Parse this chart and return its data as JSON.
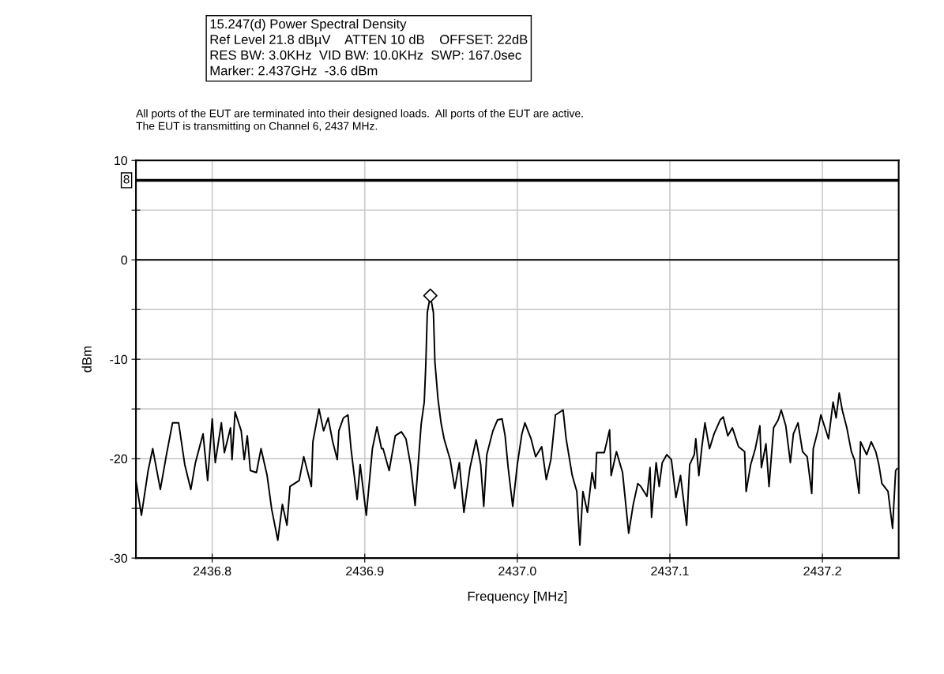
{
  "chart_data": {
    "type": "line",
    "title": "15.247(d) Power Spectral Density",
    "subtitle": "Ref Level 21.8 dBµV    ATTEN 10 dB    OFFSET: 22dB\nRES BW: 3.0KHz  VID BW: 10.0KHz  SWP: 167.0sec\nMarker: 2.437GHz  -3.6 dBm",
    "annotations": [
      "All ports of the EUT are terminated into their designed loads.  All ports of the EUT are active.\nThe EUT is transmitting on Channel 6, 2437 MHz."
    ],
    "xlabel": "Frequency [MHz]",
    "ylabel": "dBm",
    "xlim": [
      2436.75,
      2437.25
    ],
    "xticks": [
      {
        "value": 2436.8,
        "label": "2436.8"
      },
      {
        "value": 2436.9,
        "label": "2436.9"
      },
      {
        "value": 2437.0,
        "label": "2437.0"
      },
      {
        "value": 2437.1,
        "label": "2437.1"
      },
      {
        "value": 2437.2,
        "label": "2437.2"
      }
    ],
    "ylim": [
      -30,
      10
    ],
    "yticks": [
      -30,
      {
        "value": -25,
        "label": null
      },
      -20,
      {
        "value": -15,
        "label": null
      },
      -10,
      {
        "value": -5,
        "label": null
      },
      0,
      {
        "value": 5,
        "label": null
      },
      10
    ],
    "grid": true,
    "line_style": "solid",
    "marker": "none",
    "ref_lines": [
      {
        "axis": "y",
        "value": 8,
        "label": "8",
        "color": "#000000"
      },
      {
        "axis": "y",
        "value": 0,
        "label": null,
        "color": "#000000"
      }
    ],
    "series": [
      {
        "color": "#000000",
        "x": [
          2436.75,
          2436.7536,
          2436.758,
          2436.761,
          2436.766,
          2436.77,
          2436.774,
          2436.778,
          2436.782,
          2436.786,
          2436.789,
          2436.794,
          2436.797,
          2436.8,
          2436.802,
          2436.806,
          2436.808,
          2436.812,
          2436.813,
          2436.815,
          2436.819,
          2436.821,
          2436.823,
          2436.825,
          2436.829,
          2436.832,
          2436.836,
          2436.839,
          2436.843,
          2436.846,
          2436.849,
          2436.851,
          2436.857,
          2436.86,
          2436.865,
          2436.866,
          2436.87,
          2436.873,
          2436.876,
          2436.879,
          2436.882,
          2436.883,
          2436.886,
          2436.889,
          2436.891,
          2436.895,
          2436.897,
          2436.901,
          2436.905,
          2436.908,
          2436.911,
          2436.912,
          2436.916,
          2436.92,
          2436.924,
          2436.927,
          2436.93,
          2436.933,
          2436.935,
          2436.937,
          2436.939,
          2436.94,
          2436.941,
          2436.943,
          2436.945,
          2436.946,
          2436.948,
          2436.95,
          2436.952,
          2436.956,
          2436.959,
          2436.962,
          2436.965,
          2436.969,
          2436.973,
          2436.976,
          2436.978,
          2436.98,
          2436.984,
          2436.987,
          2436.99,
          2436.992,
          2436.994,
          2436.997,
          2437.0,
          2437.003,
          2437.005,
          2437.009,
          2437.012,
          2437.016,
          2437.019,
          2437.022,
          2437.025,
          2437.028,
          2437.03,
          2437.032,
          2437.036,
          2437.039,
          2437.041,
          2437.043,
          2437.046,
          2437.049,
          2437.051,
          2437.052,
          2437.057,
          2437.0605,
          2437.0615,
          2437.065,
          2437.069,
          2437.073,
          2437.076,
          2437.079,
          2437.081,
          2437.085,
          2437.087,
          2437.088,
          2437.091,
          2437.093,
          2437.095,
          2437.098,
          2437.101,
          2437.104,
          2437.107,
          2437.111,
          2437.113,
          2437.116,
          2437.117,
          2437.119,
          2437.121,
          2437.123,
          2437.126,
          2437.129,
          2437.133,
          2437.135,
          2437.138,
          2437.141,
          2437.145,
          2437.149,
          2437.15,
          2437.153,
          2437.156,
          2437.159,
          2437.16,
          2437.163,
          2437.165,
          2437.168,
          2437.171,
          2437.173,
          2437.176,
          2437.179,
          2437.181,
          2437.184,
          2437.187,
          2437.19,
          2437.193,
          2437.194,
          2437.197,
          2437.199,
          2437.204,
          2437.207,
          2437.209,
          2437.211,
          2437.213,
          2437.216,
          2437.219,
          2437.221,
          2437.224,
          2437.225,
          2437.229,
          2437.232,
          2437.235,
          2437.237,
          2437.239,
          2437.243,
          2437.246,
          2437.248,
          2437.249
        ],
        "values": [
          -22.2,
          -25.7,
          -21.2,
          -19.0,
          -23.1,
          -19.6,
          -16.4,
          -16.4,
          -20.6,
          -23.1,
          -20.4,
          -17.5,
          -22.2,
          -16.0,
          -20.4,
          -16.4,
          -19.4,
          -16.9,
          -20.1,
          -15.3,
          -17.2,
          -20.1,
          -17.7,
          -21.2,
          -21.4,
          -19.0,
          -21.7,
          -25.1,
          -28.2,
          -24.6,
          -26.7,
          -22.8,
          -22.2,
          -19.8,
          -22.8,
          -18.3,
          -15.0,
          -17.2,
          -15.9,
          -18.3,
          -20.1,
          -17.2,
          -15.9,
          -15.6,
          -19.0,
          -24.1,
          -20.6,
          -25.7,
          -19.0,
          -16.8,
          -19.0,
          -19.0,
          -21.2,
          -17.7,
          -17.3,
          -18.0,
          -20.6,
          -24.7,
          -20.6,
          -16.5,
          -14.3,
          -10.6,
          -5.3,
          -3.6,
          -5.3,
          -10.3,
          -14.0,
          -16.4,
          -18.0,
          -20.1,
          -23.0,
          -20.4,
          -25.4,
          -20.9,
          -18.1,
          -20.6,
          -24.8,
          -19.6,
          -17.2,
          -16.1,
          -16.0,
          -17.7,
          -20.9,
          -24.8,
          -20.6,
          -17.5,
          -16.4,
          -18.0,
          -19.8,
          -18.8,
          -22.1,
          -20.1,
          -15.6,
          -15.3,
          -15.1,
          -18.0,
          -21.7,
          -23.3,
          -28.7,
          -23.3,
          -25.4,
          -21.4,
          -23.0,
          -19.4,
          -19.4,
          -17.1,
          -21.7,
          -19.3,
          -21.4,
          -27.5,
          -24.6,
          -22.5,
          -22.8,
          -23.8,
          -20.9,
          -25.9,
          -20.4,
          -22.8,
          -20.4,
          -19.6,
          -20.1,
          -23.9,
          -21.7,
          -26.7,
          -20.6,
          -19.6,
          -18.0,
          -21.7,
          -18.8,
          -16.4,
          -19.0,
          -17.5,
          -16.1,
          -15.8,
          -17.7,
          -16.9,
          -18.8,
          -19.3,
          -23.3,
          -20.6,
          -19.0,
          -16.7,
          -20.9,
          -18.5,
          -22.8,
          -16.9,
          -16.1,
          -15.1,
          -16.7,
          -20.4,
          -17.5,
          -16.4,
          -19.3,
          -19.8,
          -23.5,
          -19.0,
          -17.2,
          -15.6,
          -18.0,
          -14.3,
          -15.9,
          -13.4,
          -15.1,
          -16.9,
          -19.3,
          -20.1,
          -23.5,
          -18.3,
          -19.6,
          -18.3,
          -19.3,
          -20.6,
          -22.5,
          -23.3,
          -27.0,
          -21.2,
          -21.0
        ]
      },
      {
        "type": "scatter",
        "marker": "diamond",
        "color": "#000000",
        "x": [
          2436.943
        ],
        "values": [
          -3.6
        ]
      }
    ]
  }
}
